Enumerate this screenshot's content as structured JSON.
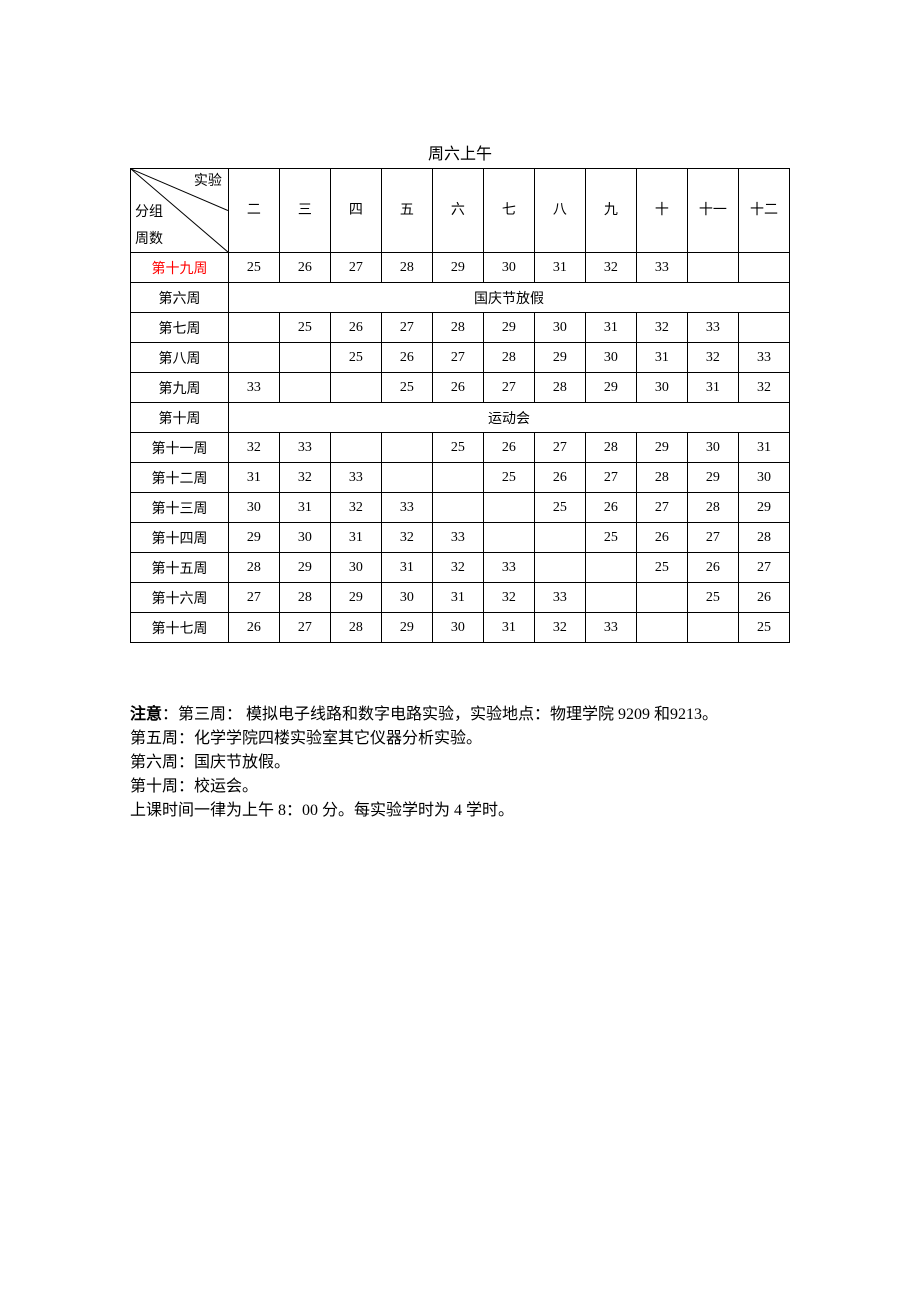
{
  "title": "周六上午",
  "corner": {
    "top": "实验",
    "mid": "分组",
    "bot": "周数"
  },
  "columns": [
    "二",
    "三",
    "四",
    "五",
    "六",
    "七",
    "八",
    "九",
    "十",
    "十一",
    "十二"
  ],
  "rows": [
    {
      "label": "第十九周",
      "red": true,
      "cells": [
        "25",
        "26",
        "27",
        "28",
        "29",
        "30",
        "31",
        "32",
        "33",
        "",
        ""
      ]
    },
    {
      "label": "第六周",
      "merged": "国庆节放假"
    },
    {
      "label": "第七周",
      "cells": [
        "",
        "25",
        "26",
        "27",
        "28",
        "29",
        "30",
        "31",
        "32",
        "33",
        ""
      ]
    },
    {
      "label": "第八周",
      "cells": [
        "",
        "",
        "25",
        "26",
        "27",
        "28",
        "29",
        "30",
        "31",
        "32",
        "33"
      ]
    },
    {
      "label": "第九周",
      "cells": [
        "33",
        "",
        "",
        "25",
        "26",
        "27",
        "28",
        "29",
        "30",
        "31",
        "32"
      ]
    },
    {
      "label": "第十周",
      "merged": "运动会"
    },
    {
      "label": "第十一周",
      "cells": [
        "32",
        "33",
        "",
        "",
        "25",
        "26",
        "27",
        "28",
        "29",
        "30",
        "31"
      ]
    },
    {
      "label": "第十二周",
      "cells": [
        "31",
        "32",
        "33",
        "",
        "",
        "25",
        "26",
        "27",
        "28",
        "29",
        "30"
      ]
    },
    {
      "label": "第十三周",
      "cells": [
        "30",
        "31",
        "32",
        "33",
        "",
        "",
        "25",
        "26",
        "27",
        "28",
        "29"
      ]
    },
    {
      "label": "第十四周",
      "cells": [
        "29",
        "30",
        "31",
        "32",
        "33",
        "",
        "",
        "25",
        "26",
        "27",
        "28"
      ]
    },
    {
      "label": "第十五周",
      "cells": [
        "28",
        "29",
        "30",
        "31",
        "32",
        "33",
        "",
        "",
        "25",
        "26",
        "27"
      ]
    },
    {
      "label": "第十六周",
      "cells": [
        "27",
        "28",
        "29",
        "30",
        "31",
        "32",
        "33",
        "",
        "",
        "25",
        "26"
      ]
    },
    {
      "label": "第十七周",
      "cells": [
        "26",
        "27",
        "28",
        "29",
        "30",
        "31",
        "32",
        "33",
        "",
        "",
        "25"
      ]
    }
  ],
  "notes": {
    "line1_prefix": "注意",
    "line1": "：第三周： 模拟电子线路和数字电路实验，实验地点：物理学院 9209 和9213。",
    "line2": "第五周：化学学院四楼实验室其它仪器分析实验。",
    "line3": "第六周：国庆节放假。",
    "line4": "第十周：校运会。",
    "line5": "上课时间一律为上午 8：00 分。每实验学时为 4 学时。"
  },
  "style": {
    "text_color": "#000000",
    "red_color": "#ff0000",
    "border_color": "#000000",
    "background": "#ffffff",
    "title_fontsize": 16,
    "cell_fontsize": 14,
    "notes_fontsize": 16
  }
}
